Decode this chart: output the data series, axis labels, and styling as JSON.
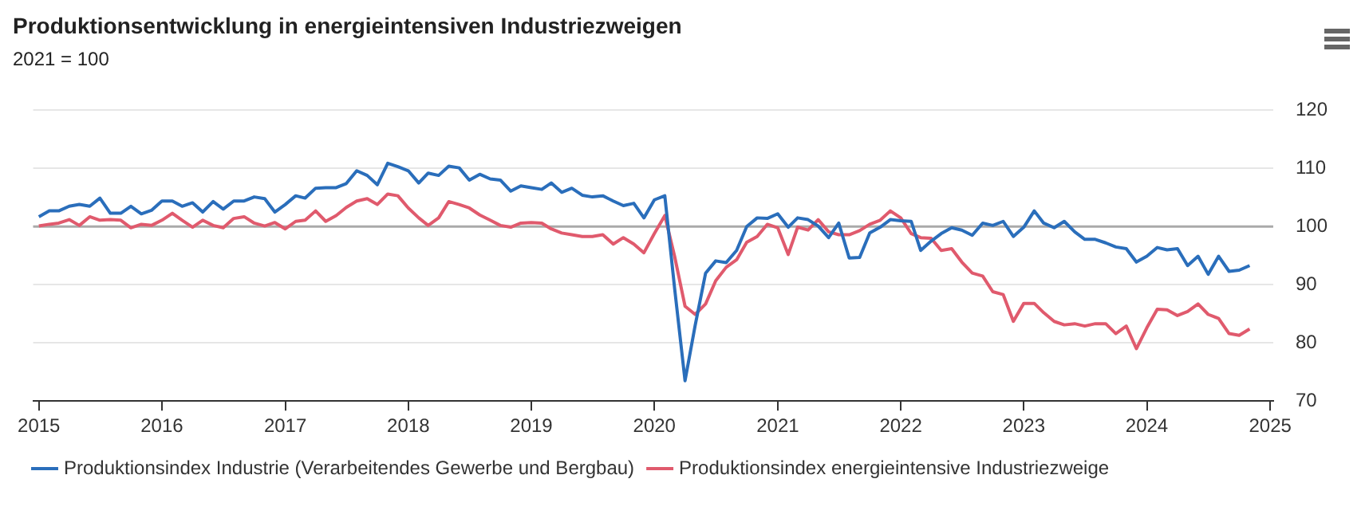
{
  "chart_data": {
    "type": "line",
    "title": "Produktionsentwicklung in energieintensiven Industriezweigen",
    "subtitle": "2021 = 100",
    "x": [
      "2015-01",
      "2015-02",
      "2015-03",
      "2015-04",
      "2015-05",
      "2015-06",
      "2015-07",
      "2015-08",
      "2015-09",
      "2015-10",
      "2015-11",
      "2015-12",
      "2016-01",
      "2016-02",
      "2016-03",
      "2016-04",
      "2016-05",
      "2016-06",
      "2016-07",
      "2016-08",
      "2016-09",
      "2016-10",
      "2016-11",
      "2016-12",
      "2017-01",
      "2017-02",
      "2017-03",
      "2017-04",
      "2017-05",
      "2017-06",
      "2017-07",
      "2017-08",
      "2017-09",
      "2017-10",
      "2017-11",
      "2017-12",
      "2018-01",
      "2018-02",
      "2018-03",
      "2018-04",
      "2018-05",
      "2018-06",
      "2018-07",
      "2018-08",
      "2018-09",
      "2018-10",
      "2018-11",
      "2018-12",
      "2019-01",
      "2019-02",
      "2019-03",
      "2019-04",
      "2019-05",
      "2019-06",
      "2019-07",
      "2019-08",
      "2019-09",
      "2019-10",
      "2019-11",
      "2019-12",
      "2020-01",
      "2020-02",
      "2020-03",
      "2020-04",
      "2020-05",
      "2020-06",
      "2020-07",
      "2020-08",
      "2020-09",
      "2020-10",
      "2020-11",
      "2020-12",
      "2021-01",
      "2021-02",
      "2021-03",
      "2021-04",
      "2021-05",
      "2021-06",
      "2021-07",
      "2021-08",
      "2021-09",
      "2021-10",
      "2021-11",
      "2021-12",
      "2022-01",
      "2022-02",
      "2022-03",
      "2022-04",
      "2022-05",
      "2022-06",
      "2022-07",
      "2022-08",
      "2022-09",
      "2022-10",
      "2022-11",
      "2022-12",
      "2023-01",
      "2023-02",
      "2023-03",
      "2023-04",
      "2023-05",
      "2023-06",
      "2023-07",
      "2023-08",
      "2023-09",
      "2023-10",
      "2023-11",
      "2023-12",
      "2024-01",
      "2024-02",
      "2024-03",
      "2024-04",
      "2024-05",
      "2024-06",
      "2024-07",
      "2024-08",
      "2024-09",
      "2024-10",
      "2024-11"
    ],
    "series": [
      {
        "name": "Produktionsindex Industrie (Verarbeitendes Gewerbe und Bergbau)",
        "color": "#2a6ebb",
        "values": [
          101.7,
          102.7,
          102.7,
          103.5,
          103.8,
          103.5,
          104.9,
          102.3,
          102.3,
          103.5,
          102.2,
          102.8,
          104.4,
          104.4,
          103.5,
          104.1,
          102.5,
          104.3,
          103,
          104.4,
          104.4,
          105.1,
          104.8,
          102.5,
          103.8,
          105.3,
          104.9,
          106.6,
          106.7,
          106.7,
          107.4,
          109.6,
          108.8,
          107.2,
          110.9,
          110.3,
          109.6,
          107.5,
          109.2,
          108.8,
          110.4,
          110.1,
          108,
          109,
          108.2,
          108,
          106.1,
          107,
          106.7,
          106.4,
          107.5,
          105.9,
          106.6,
          105.4,
          105.1,
          105.3,
          104.4,
          103.6,
          104,
          101.5,
          104.6,
          105.3,
          89.4,
          73.5,
          83,
          92,
          94.1,
          93.8,
          95.9,
          100,
          101.5,
          101.4,
          102.2,
          99.9,
          101.5,
          101.2,
          100.1,
          98.1,
          100.6,
          94.6,
          94.7,
          98.9,
          99.9,
          101.2,
          101,
          100.9,
          95.9,
          97.5,
          98.8,
          99.8,
          99.4,
          98.5,
          100.6,
          100.2,
          100.9,
          98.3,
          99.9,
          102.7,
          100.6,
          99.8,
          100.9,
          99.1,
          97.8,
          97.8,
          97.2,
          96.5,
          96.2,
          93.9,
          94.9,
          96.4,
          96,
          96.2,
          93.3,
          94.9,
          91.8,
          94.9,
          92.3,
          92.5,
          93.3
        ]
      },
      {
        "name": "Produktionsindex energieintensive Industriezweige",
        "color": "#e05a6d",
        "values": [
          100.1,
          100.4,
          100.6,
          101.2,
          100.2,
          101.7,
          101.1,
          101.2,
          101.1,
          99.8,
          100.4,
          100.2,
          101.1,
          102.3,
          101.1,
          99.9,
          101.1,
          100.2,
          99.8,
          101.4,
          101.7,
          100.6,
          100.1,
          100.7,
          99.6,
          100.9,
          101.1,
          102.7,
          100.9,
          101.9,
          103.3,
          104.4,
          104.8,
          103.8,
          105.6,
          105.3,
          103.2,
          101.5,
          100.2,
          101.5,
          104.3,
          103.8,
          103.2,
          102,
          101.1,
          100.2,
          99.9,
          100.6,
          100.7,
          100.6,
          99.6,
          98.9,
          98.6,
          98.3,
          98.3,
          98.6,
          97,
          98.1,
          97,
          95.5,
          98.8,
          101.9,
          94.9,
          86.3,
          84.9,
          86.7,
          90.7,
          93,
          94.3,
          97.3,
          98.3,
          100.4,
          99.8,
          95.2,
          99.9,
          99.4,
          101.2,
          99.1,
          98.6,
          98.6,
          99.3,
          100.4,
          101.1,
          102.7,
          101.5,
          98.8,
          98.1,
          98,
          95.9,
          96.2,
          93.9,
          92,
          91.5,
          88.8,
          88.3,
          83.7,
          86.8,
          86.8,
          85.2,
          83.7,
          83.1,
          83.3,
          82.9,
          83.3,
          83.3,
          81.6,
          82.9,
          79,
          82.6,
          85.8,
          85.7,
          84.7,
          85.4,
          86.7,
          84.9,
          84.2,
          81.6,
          81.3,
          82.4
        ]
      }
    ],
    "xlim": [
      "2014-12-15",
      "2025-01-10"
    ],
    "xticks": [
      "2015",
      "2016",
      "2017",
      "2018",
      "2019",
      "2020",
      "2021",
      "2022",
      "2023",
      "2024",
      "2025"
    ],
    "ylim": [
      70,
      120
    ],
    "yticks": [
      70,
      80,
      90,
      100,
      110,
      120
    ],
    "ref_lines": [
      {
        "axis": "y",
        "value": 100,
        "color": "#aaaaaa"
      }
    ],
    "grid": "y",
    "legend": "bottom left",
    "marker": "none",
    "line_style": "solid"
  }
}
